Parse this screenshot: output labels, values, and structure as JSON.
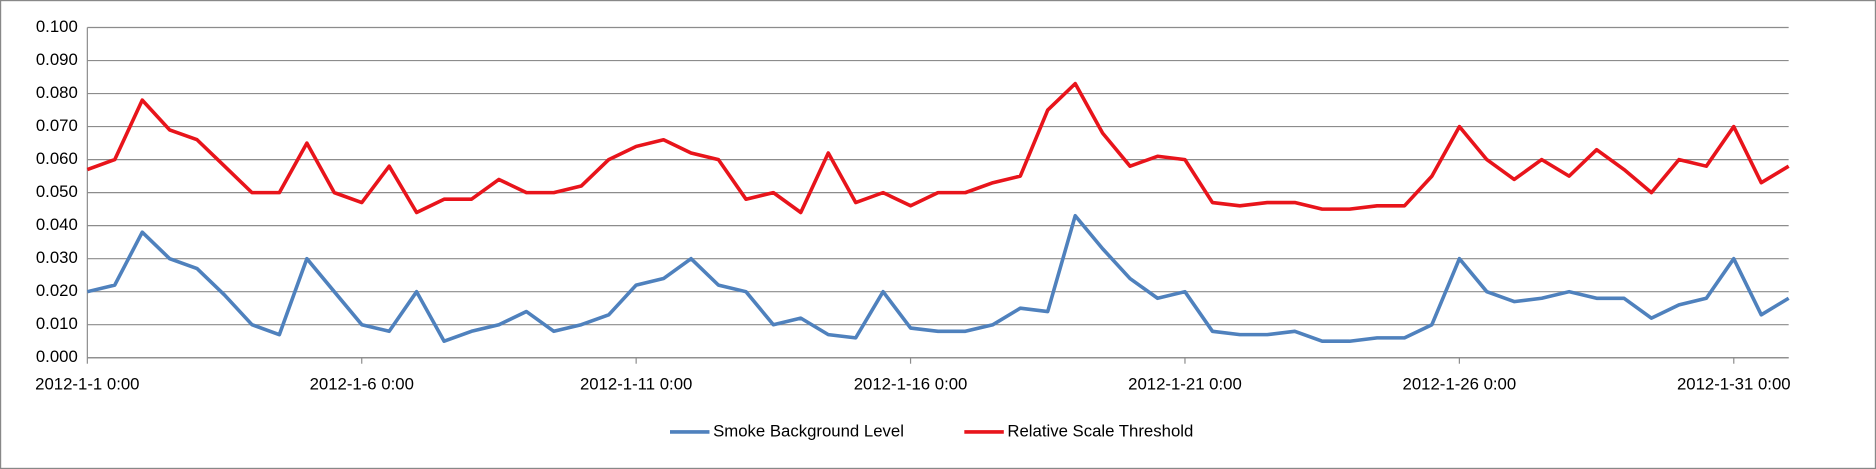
{
  "chart_data": {
    "type": "line",
    "categories": [
      "2012-1-1 0:00",
      null,
      null,
      null,
      null,
      null,
      null,
      null,
      null,
      null,
      "2012-1-6 0:00",
      null,
      null,
      null,
      null,
      null,
      null,
      null,
      null,
      null,
      "2012-1-11 0:00",
      null,
      null,
      null,
      null,
      null,
      null,
      null,
      null,
      null,
      "2012-1-16 0:00",
      null,
      null,
      null,
      null,
      null,
      null,
      null,
      null,
      null,
      "2012-1-21 0:00",
      null,
      null,
      null,
      null,
      null,
      null,
      null,
      null,
      null,
      "2012-1-26 0:00",
      null,
      null,
      null,
      null,
      null,
      null,
      null,
      null,
      null,
      "2012-1-31 0:00",
      null,
      null
    ],
    "series": [
      {
        "name": "Smoke Background Level",
        "color": "#4f81bd",
        "values": [
          0.02,
          0.022,
          0.038,
          0.03,
          0.027,
          0.019,
          0.01,
          0.007,
          0.03,
          0.02,
          0.01,
          0.008,
          0.02,
          0.005,
          0.008,
          0.01,
          0.014,
          0.008,
          0.01,
          0.013,
          0.022,
          0.024,
          0.03,
          0.022,
          0.02,
          0.01,
          0.012,
          0.007,
          0.006,
          0.02,
          0.009,
          0.008,
          0.008,
          0.01,
          0.015,
          0.014,
          0.043,
          0.033,
          0.024,
          0.018,
          0.02,
          0.008,
          0.007,
          0.007,
          0.008,
          0.005,
          0.005,
          0.006,
          0.006,
          0.01,
          0.03,
          0.02,
          0.017,
          0.018,
          0.02,
          0.018,
          0.018,
          0.012,
          0.016,
          0.018,
          0.03,
          0.013,
          0.018
        ]
      },
      {
        "name": "Relative Scale Threshold",
        "color": "#e8141b",
        "values": [
          0.057,
          0.06,
          0.078,
          0.069,
          0.066,
          0.058,
          0.05,
          0.05,
          0.065,
          0.05,
          0.047,
          0.058,
          0.044,
          0.048,
          0.048,
          0.054,
          0.05,
          0.05,
          0.052,
          0.06,
          0.064,
          0.066,
          0.062,
          0.06,
          0.048,
          0.05,
          0.044,
          0.062,
          0.047,
          0.05,
          0.046,
          0.05,
          0.05,
          0.053,
          0.055,
          0.075,
          0.083,
          0.068,
          0.058,
          0.061,
          0.06,
          0.047,
          0.046,
          0.047,
          0.047,
          0.045,
          0.045,
          0.046,
          0.046,
          0.055,
          0.07,
          0.06,
          0.054,
          0.06,
          0.055,
          0.063,
          0.057,
          0.05,
          0.06,
          0.058,
          0.07,
          0.053,
          0.058
        ]
      }
    ],
    "ylim": [
      0,
      0.1
    ],
    "yticks": [
      {
        "value": 0,
        "label": "0.000"
      },
      {
        "value": 0.01,
        "label": "0.010"
      },
      {
        "value": 0.02,
        "label": "0.020"
      },
      {
        "value": 0.03,
        "label": "0.030"
      },
      {
        "value": 0.04,
        "label": "0.040"
      },
      {
        "value": 0.05,
        "label": "0.050"
      },
      {
        "value": 0.06,
        "label": "0.060"
      },
      {
        "value": 0.07,
        "label": "0.070"
      },
      {
        "value": 0.08,
        "label": "0.080"
      },
      {
        "value": 0.09,
        "label": "0.090"
      },
      {
        "value": 0.1,
        "label": "0.100"
      }
    ],
    "grid": true,
    "legend": "bottom"
  }
}
